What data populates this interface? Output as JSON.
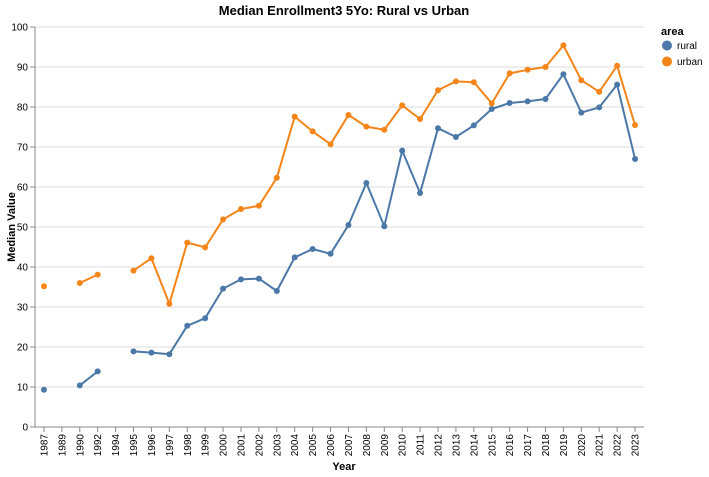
{
  "chart_data": {
    "type": "line",
    "title": "Median Enrollment3 5Yo: Rural vs Urban",
    "xlabel": "Year",
    "ylabel": "Median Value",
    "ylim": [
      0,
      100
    ],
    "yticks": [
      0,
      10,
      20,
      30,
      40,
      50,
      60,
      70,
      80,
      90,
      100
    ],
    "categories": [
      "1987",
      "1989",
      "1990",
      "1992",
      "1994",
      "1995",
      "1996",
      "1997",
      "1998",
      "1999",
      "2000",
      "2001",
      "2002",
      "2003",
      "2004",
      "2005",
      "2006",
      "2007",
      "2008",
      "2009",
      "2010",
      "2011",
      "2012",
      "2013",
      "2014",
      "2015",
      "2016",
      "2017",
      "2018",
      "2019",
      "2020",
      "2021",
      "2022",
      "2023"
    ],
    "grid": true,
    "legend": {
      "title": "area",
      "placement": "top-right"
    },
    "series": [
      {
        "name": "rural",
        "color": "#4c78a8",
        "values": [
          9.3,
          null,
          10.4,
          13.9,
          null,
          18.9,
          18.6,
          18.2,
          25.3,
          27.2,
          34.6,
          36.9,
          37.1,
          34.0,
          42.4,
          44.5,
          43.3,
          50.5,
          61.0,
          50.2,
          69.1,
          58.5,
          74.7,
          72.5,
          75.4,
          79.5,
          81.0,
          81.4,
          82.0,
          88.2,
          78.6,
          79.9,
          85.6,
          67.0
        ]
      },
      {
        "name": "urban",
        "color": "#f58518",
        "values": [
          35.2,
          null,
          36.0,
          38.1,
          null,
          39.1,
          42.2,
          30.8,
          46.1,
          44.9,
          51.9,
          54.5,
          55.3,
          62.3,
          77.6,
          73.9,
          70.7,
          78.0,
          75.1,
          74.3,
          80.4,
          77.0,
          84.2,
          86.4,
          86.2,
          80.9,
          88.4,
          89.3,
          90.0,
          95.4,
          86.7,
          83.8,
          90.3,
          75.5
        ]
      }
    ]
  }
}
